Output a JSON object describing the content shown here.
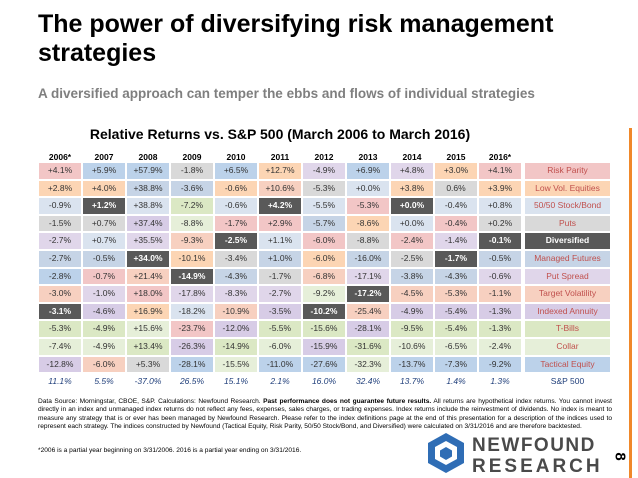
{
  "header": {
    "title": "The power of diversifying risk management strategies",
    "subtitle": "A diversified approach can temper the ebbs and flows of individual strategies"
  },
  "table": {
    "title": "Relative Returns vs. S&P 500 (March 2006 to March 2016)",
    "columns": [
      "2006*",
      "2007",
      "2008",
      "2009",
      "2010",
      "2011",
      "2012",
      "2013",
      "2014",
      "2015",
      "2016*"
    ],
    "rows": [
      {
        "values": [
          "+4.1%",
          "+5.9%",
          "+57.9%",
          "-1.8%",
          "+6.5%",
          "+12.7%",
          "-4.9%",
          "+6.9%",
          "+4.8%",
          "+3.0%",
          "+4.1%"
        ],
        "strategy": "Risk Parity",
        "strategy_color": "#f2c6c6",
        "colors": [
          "#f2c6c6",
          "#bcd2ea",
          "#bcd2ea",
          "#d9d9d9",
          "#bcd2ea",
          "#fcd5b4",
          "#e0d6ea",
          "#bcd2ea",
          "#e0d6ea",
          "#fcd5b4",
          "#f2c6c6"
        ]
      },
      {
        "values": [
          "+2.8%",
          "+4.0%",
          "+38.8%",
          "-3.6%",
          "-0.6%",
          "+10.6%",
          "-5.3%",
          "+0.0%",
          "+3.8%",
          "0.6%",
          "+3.9%"
        ],
        "strategy": "Low Vol. Equities",
        "strategy_color": "#fcd5b4",
        "colors": [
          "#fcd5b4",
          "#fcd5b4",
          "#c6d4e6",
          "#c6d4e6",
          "#fcd5b4",
          "#f7d0c0",
          "#d9d9d9",
          "#dae3ef",
          "#fcd5b4",
          "#d9d9d9",
          "#fcd5b4"
        ]
      },
      {
        "values": [
          "-0.9%",
          "+1.2%",
          "+38.8%",
          "-7.2%",
          "-0.6%",
          "+4.2%",
          "-5.5%",
          "-5.3%",
          "+0.0%",
          "-0.4%",
          "+0.8%"
        ],
        "strategy": "50/50 Stock/Bond",
        "strategy_color": "#dae3ef",
        "colors": [
          "#dae3ef",
          "#595959",
          "#dae3ef",
          "#dbe8c4",
          "#dae3ef",
          "#595959",
          "#dae3ef",
          "#f2c6c6",
          "#595959",
          "#dae3ef",
          "#dae3ef"
        ]
      },
      {
        "values": [
          "-1.5%",
          "+0.7%",
          "+37.4%",
          "-8.8%",
          "-1.7%",
          "+2.9%",
          "-5.7%",
          "-8.6%",
          "+0.0%",
          "-0.4%",
          "+0.2%"
        ],
        "strategy": "Puts",
        "strategy_color": "#d9d9d9",
        "colors": [
          "#d9d9d9",
          "#d9d9d9",
          "#d7cce6",
          "#e6efd9",
          "#f2c6c6",
          "#f2c6c6",
          "#c6d4e6",
          "#fcd5b4",
          "#dae3ef",
          "#f2c6c6",
          "#d9d9d9"
        ]
      },
      {
        "values": [
          "-2.7%",
          "+0.7%",
          "+35.5%",
          "-9.3%",
          "-2.5%",
          "+1.1%",
          "-6.0%",
          "-8.8%",
          "-2.4%",
          "-1.4%",
          "-0.1%"
        ],
        "strategy": "Diversified",
        "strategy_color": "#595959",
        "colors": [
          "#e0d6ea",
          "#dae3ef",
          "#e0d6ea",
          "#f7d0c0",
          "#595959",
          "#dae3ef",
          "#f2c6c6",
          "#d9d9d9",
          "#f2c6c6",
          "#e0d6ea",
          "#595959"
        ]
      },
      {
        "values": [
          "-2.7%",
          "-0.5%",
          "+34.0%",
          "-10.1%",
          "-3.4%",
          "+1.0%",
          "-6.0%",
          "-16.0%",
          "-2.5%",
          "-1.7%",
          "-0.5%"
        ],
        "strategy": "Managed Futures",
        "strategy_color": "#c6d4e6",
        "colors": [
          "#c6d4e6",
          "#c6d4e6",
          "#595959",
          "#fcd5b4",
          "#d9d9d9",
          "#c6d4e6",
          "#fcd5b4",
          "#c6d4e6",
          "#d9d9d9",
          "#595959",
          "#c6d4e6"
        ]
      },
      {
        "values": [
          "-2.8%",
          "-0.7%",
          "+21.4%",
          "-14.9%",
          "-4.3%",
          "-1.7%",
          "-6.8%",
          "-17.1%",
          "-3.8%",
          "-4.3%",
          "-0.6%"
        ],
        "strategy": "Put Spread",
        "strategy_color": "#e0d6ea",
        "colors": [
          "#bcd2ea",
          "#f2c6c6",
          "#f7d0c0",
          "#595959",
          "#c6d4e6",
          "#d9d9d9",
          "#f7d0c0",
          "#e0d6ea",
          "#c6d4e6",
          "#c6d4e6",
          "#e0d6ea"
        ]
      },
      {
        "values": [
          "-3.0%",
          "-1.0%",
          "+18.0%",
          "-17.8%",
          "-8.3%",
          "-2.7%",
          "-9.2%",
          "-17.2%",
          "-4.5%",
          "-5.3%",
          "-1.1%"
        ],
        "strategy": "Target Volatility",
        "strategy_color": "#f7d0c0",
        "colors": [
          "#f7d0c0",
          "#e0d6ea",
          "#f2c6c6",
          "#e0d6ea",
          "#e0d6ea",
          "#e0d6ea",
          "#e6efd9",
          "#595959",
          "#f7d0c0",
          "#f7d0c0",
          "#f7d0c0"
        ]
      },
      {
        "values": [
          "-3.1%",
          "-4.6%",
          "+16.9%",
          "-18.2%",
          "-10.9%",
          "-3.5%",
          "-10.2%",
          "-25.4%",
          "-4.9%",
          "-5.4%",
          "-1.3%"
        ],
        "strategy": "Indexed Annuity",
        "strategy_color": "#d7cce6",
        "colors": [
          "#595959",
          "#d7cce6",
          "#fcd5b4",
          "#dae3ef",
          "#f7d0c0",
          "#d7cce6",
          "#595959",
          "#f7d0c0",
          "#d7cce6",
          "#d7cce6",
          "#d7cce6"
        ]
      },
      {
        "values": [
          "-5.3%",
          "-4.9%",
          "+15.6%",
          "-23.7%",
          "-12.0%",
          "-5.5%",
          "-15.6%",
          "-28.1%",
          "-9.5%",
          "-5.4%",
          "-1.3%"
        ],
        "strategy": "T-Bills",
        "strategy_color": "#dbe8c4",
        "colors": [
          "#dbe8c4",
          "#dbe8c4",
          "#e6efd9",
          "#f2c6c6",
          "#d7cce6",
          "#dbe8c4",
          "#dbe8c4",
          "#d7cce6",
          "#dbe8c4",
          "#dbe8c4",
          "#dbe8c4"
        ]
      },
      {
        "values": [
          "-7.4%",
          "-4.9%",
          "+13.4%",
          "-26.3%",
          "-14.9%",
          "-6.0%",
          "-15.9%",
          "-31.6%",
          "-10.6%",
          "-6.5%",
          "-2.4%"
        ],
        "strategy": "Collar",
        "strategy_color": "#e6efd9",
        "colors": [
          "#e6efd9",
          "#e6efd9",
          "#dbe8c4",
          "#d7cce6",
          "#dbe8c4",
          "#e6efd9",
          "#d7cce6",
          "#dbe8c4",
          "#e6efd9",
          "#e6efd9",
          "#e6efd9"
        ]
      },
      {
        "values": [
          "-12.8%",
          "-6.0%",
          "+5.3%",
          "-28.1%",
          "-15.5%",
          "-11.0%",
          "-27.6%",
          "-32.3%",
          "-13.7%",
          "-7.3%",
          "-9.2%"
        ],
        "strategy": "Tactical Equity",
        "strategy_color": "#bcd2ea",
        "colors": [
          "#d7cce6",
          "#f7d0c0",
          "#d9d9d9",
          "#bcd2ea",
          "#e6efd9",
          "#bcd2ea",
          "#bcd2ea",
          "#e6efd9",
          "#bcd2ea",
          "#bcd2ea",
          "#bcd2ea"
        ]
      }
    ],
    "benchmark": {
      "values": [
        "11.1%",
        "5.5%",
        "-37.0%",
        "26.5%",
        "15.1%",
        "2.1%",
        "16.0%",
        "32.4%",
        "13.7%",
        "1.4%",
        "1.3%"
      ],
      "name": "S&P 500"
    }
  },
  "footnotes": {
    "source_parts": [
      "Data Source: Morningstar, CBOE, S&P. Calculations: Newfound Research. ",
      "Past performance does not guarantee future results.",
      " All returns are hypothetical index returns. You cannot invest directly in an index and unmanaged index returns do not reflect any fees, expenses, sales charges, or trading expenses. Index returns include the reinvestment of dividends. No index is meant to measure any strategy that is or ever has been managed by Newfound Research. Please refer to the index definitions page at the end of this presentation for a description of the indices used to represent each strategy. The indices constructed by Newfound (Tactical Equity, Risk Parity, 50/50 Stock/Bond, and Diversified) were calculated on 3/31/2016 and are therefore backtested."
    ],
    "note": "*2006 is a partial year beginning on 3/31/2006. 2016 is a partial year ending on 3/31/2016."
  },
  "logo": {
    "line1": "NEWFOUND",
    "line2": "RESEARCH"
  },
  "page_number": "8"
}
